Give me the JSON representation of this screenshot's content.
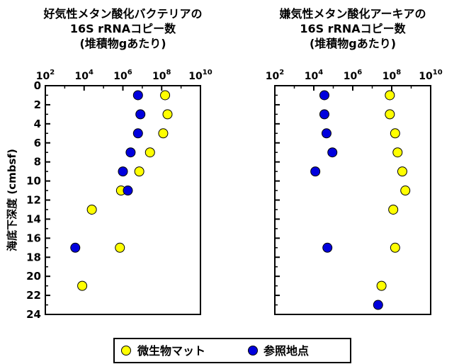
{
  "chart_data": [
    {
      "type": "scatter",
      "title": [
        "好気性メタン酸化バクテリアの",
        "16S rRNAコピー数",
        "(堆積物gあたり)"
      ],
      "ylabel": "海底下深度 (cmbsf)",
      "x_scale": "log",
      "xlim": [
        100,
        10000000000
      ],
      "x_ticks": [
        {
          "value": 100,
          "base": "10",
          "exp": "2"
        },
        {
          "value": 10000,
          "base": "10",
          "exp": "4"
        },
        {
          "value": 1000000,
          "base": "10",
          "exp": "6"
        },
        {
          "value": 100000000,
          "base": "10",
          "exp": "8"
        },
        {
          "value": 10000000000,
          "base": "10",
          "exp": "10"
        }
      ],
      "ylim": [
        24,
        0
      ],
      "y_ticks": [
        "0",
        "2",
        "4",
        "6",
        "8",
        "10",
        "12",
        "14",
        "16",
        "18",
        "20",
        "22",
        "24"
      ],
      "series": [
        {
          "name": "微生物マット",
          "color": "#ffff00",
          "points": [
            [
              150000000,
              1
            ],
            [
              200000000,
              3
            ],
            [
              120000000,
              5
            ],
            [
              25000000,
              7
            ],
            [
              7000000,
              9
            ],
            [
              800000,
              11
            ],
            [
              25000,
              13
            ],
            [
              700000,
              17
            ],
            [
              8000,
              21
            ]
          ]
        },
        {
          "name": "参照地点",
          "color": "#0000dd",
          "points": [
            [
              6000000,
              1
            ],
            [
              8000000,
              3
            ],
            [
              6000000,
              5
            ],
            [
              2500000,
              7
            ],
            [
              1000000,
              9
            ],
            [
              1800000,
              11
            ],
            [
              3500,
              17
            ]
          ]
        }
      ]
    },
    {
      "type": "scatter",
      "title": [
        "嫌気性メタン酸化アーキアの",
        "16S rRNAコピー数",
        "(堆積物gあたり)"
      ],
      "ylabel": "",
      "x_scale": "log",
      "xlim": [
        100,
        10000000000
      ],
      "x_ticks": [
        {
          "value": 100,
          "base": "10",
          "exp": "2"
        },
        {
          "value": 10000,
          "base": "10",
          "exp": "4"
        },
        {
          "value": 1000000,
          "base": "10",
          "exp": "6"
        },
        {
          "value": 100000000,
          "base": "10",
          "exp": "8"
        },
        {
          "value": 10000000000,
          "base": "10",
          "exp": "10"
        }
      ],
      "ylim": [
        24,
        0
      ],
      "y_ticks": [],
      "series": [
        {
          "name": "微生物マット",
          "color": "#ffff00",
          "points": [
            [
              80000000,
              1
            ],
            [
              80000000,
              3
            ],
            [
              150000000,
              5
            ],
            [
              200000000,
              7
            ],
            [
              350000000,
              9
            ],
            [
              500000000,
              11
            ],
            [
              120000000,
              13
            ],
            [
              150000000,
              17
            ],
            [
              30000000,
              21
            ]
          ]
        },
        {
          "name": "参照地点",
          "color": "#0000dd",
          "points": [
            [
              35000,
              1
            ],
            [
              35000,
              3
            ],
            [
              45000,
              5
            ],
            [
              90000,
              7
            ],
            [
              12000,
              9
            ],
            [
              50000,
              17
            ],
            [
              20000000,
              23
            ]
          ]
        }
      ]
    }
  ],
  "legend": {
    "items": [
      {
        "label": "微生物マット",
        "color": "#ffff00"
      },
      {
        "label": "参照地点",
        "color": "#0000dd"
      }
    ]
  }
}
